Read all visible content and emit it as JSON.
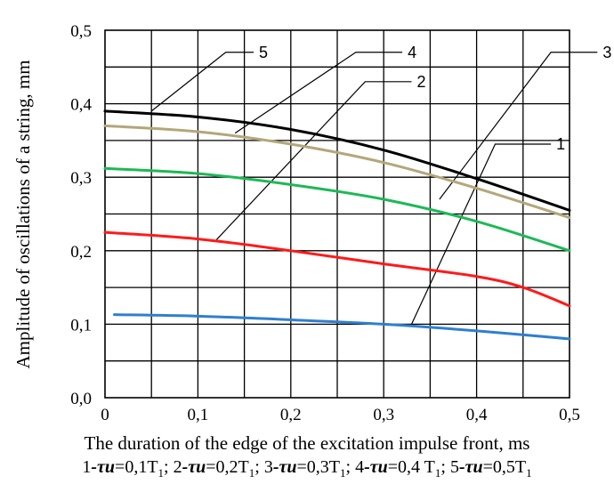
{
  "chart_data": {
    "type": "line",
    "title": "",
    "xlabel": "The duration of the edge of the excitation impulse front, ms",
    "ylabel": "Amplitude of oscillations of a string, mm",
    "xlim": [
      0,
      0.5
    ],
    "ylim": [
      0,
      0.5
    ],
    "xticks": [
      "0",
      "0,1",
      "0,2",
      "0,3",
      "0,4",
      "0,5"
    ],
    "yticks": [
      "0,0",
      "0,1",
      "0,2",
      "0,3",
      "0,4",
      "0,5"
    ],
    "grid": true,
    "grid_x_step": 0.05,
    "grid_y_step": 0.05,
    "series": [
      {
        "name": "1",
        "color": "#2f7fd0",
        "x": [
          0.01,
          0.1,
          0.2,
          0.3,
          0.4,
          0.5
        ],
        "y": [
          0.113,
          0.111,
          0.106,
          0.1,
          0.091,
          0.08
        ]
      },
      {
        "name": "2",
        "color": "#ff1a1a",
        "x": [
          0.0,
          0.1,
          0.2,
          0.3,
          0.4,
          0.45,
          0.5
        ],
        "y": [
          0.225,
          0.216,
          0.2,
          0.182,
          0.165,
          0.15,
          0.125
        ]
      },
      {
        "name": "3",
        "color": "#1db956",
        "x": [
          0.0,
          0.1,
          0.2,
          0.3,
          0.4,
          0.5
        ],
        "y": [
          0.312,
          0.305,
          0.29,
          0.27,
          0.24,
          0.2
        ]
      },
      {
        "name": "4",
        "color": "#b3a77a",
        "x": [
          0.0,
          0.1,
          0.2,
          0.3,
          0.4,
          0.5
        ],
        "y": [
          0.37,
          0.362,
          0.345,
          0.32,
          0.285,
          0.245
        ]
      },
      {
        "name": "5",
        "color": "#000000",
        "x": [
          0.0,
          0.1,
          0.2,
          0.3,
          0.4,
          0.5
        ],
        "y": [
          0.39,
          0.382,
          0.365,
          0.337,
          0.298,
          0.255
        ]
      }
    ],
    "leader_lines": [
      {
        "series": "1",
        "label": "1",
        "from": [
          0.33,
          0.1
        ],
        "to": [
          0.42,
          0.345
        ],
        "end": [
          0.48,
          0.345
        ]
      },
      {
        "series": "2",
        "label": "2",
        "from": [
          0.12,
          0.215
        ],
        "to": [
          0.28,
          0.43
        ],
        "end": [
          0.33,
          0.43
        ]
      },
      {
        "series": "3",
        "label": "3",
        "from": [
          0.36,
          0.27
        ],
        "to": [
          0.48,
          0.47
        ],
        "end": [
          0.53,
          0.47
        ]
      },
      {
        "series": "4",
        "label": "4",
        "from": [
          0.14,
          0.36
        ],
        "to": [
          0.27,
          0.47
        ],
        "end": [
          0.32,
          0.47
        ]
      },
      {
        "series": "5",
        "label": "5",
        "from": [
          0.05,
          0.39
        ],
        "to": [
          0.13,
          0.47
        ],
        "end": [
          0.16,
          0.47
        ]
      }
    ],
    "legend": {
      "placement": "bottom",
      "symbol": "τu",
      "entries": [
        {
          "num": "1",
          "value": "0,1",
          "period": "T1"
        },
        {
          "num": "2",
          "value": "0,2",
          "period": "T1"
        },
        {
          "num": "3",
          "value": "0,3",
          "period": "T1"
        },
        {
          "num": "4",
          "value": "0,4 ",
          "period": "T1"
        },
        {
          "num": "5",
          "value": "0,5",
          "period": "T1"
        }
      ]
    }
  }
}
